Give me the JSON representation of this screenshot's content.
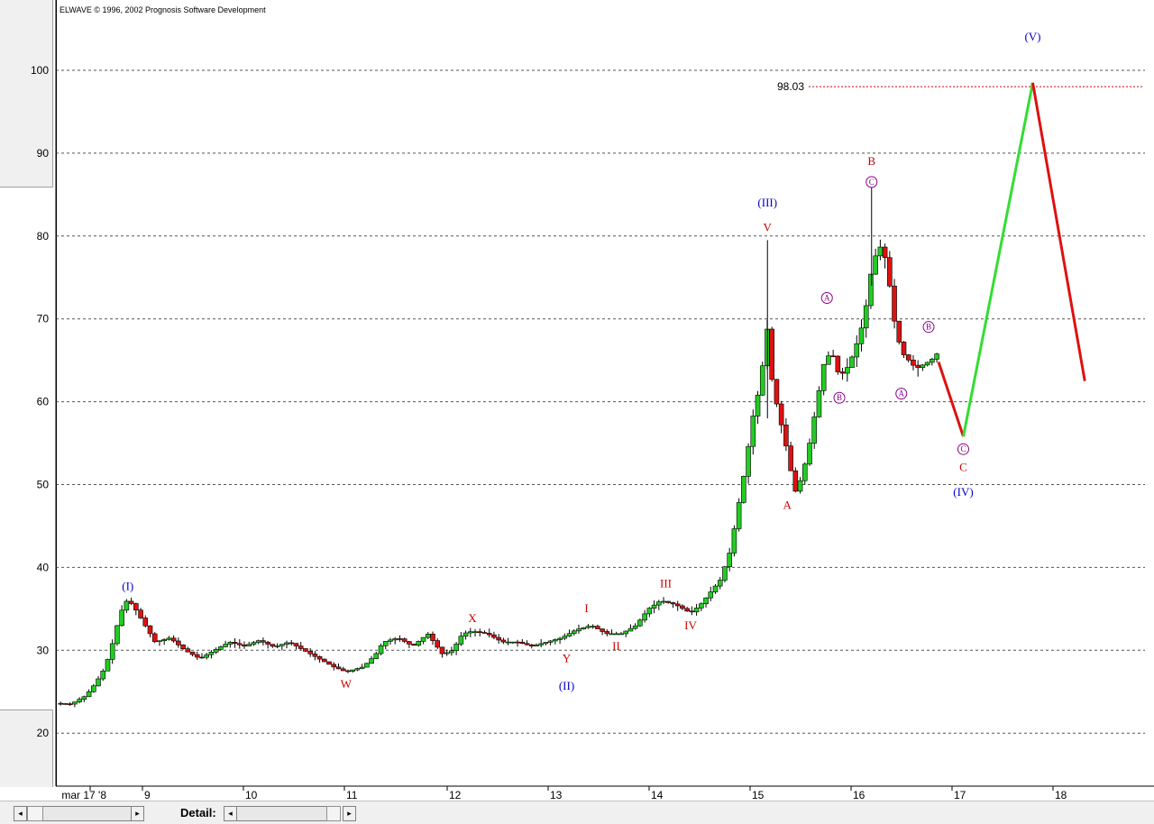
{
  "app": {
    "copyright": "ELWAVE © 1996, 2002 Prognosis Software Development"
  },
  "colors": {
    "up_candle": "#22cc22",
    "down_candle": "#dd1111",
    "wave_red": "#cc0000",
    "wave_blue": "#0000cc",
    "wave_purple": "#880088",
    "projection_up": "#33dd33",
    "projection_down": "#dd1111",
    "target_line": "#dd0000"
  },
  "chart_data": {
    "type": "candlestick",
    "title": "",
    "ylim": [
      15,
      108
    ],
    "y_ticks": [
      20,
      30,
      40,
      50,
      60,
      70,
      80,
      90,
      100
    ],
    "x_tick_labels": [
      "mar 17 '8",
      "9",
      "10",
      "11",
      "12",
      "13",
      "14",
      "15",
      "16",
      "17",
      "18"
    ],
    "grid": "horizontal dashed",
    "target": {
      "label": "98.03",
      "value": 98.03
    },
    "price_path": [
      [
        0,
        23.6
      ],
      [
        0.3,
        23.5
      ],
      [
        0.6,
        24.5
      ],
      [
        0.8,
        26
      ],
      [
        1.0,
        28
      ],
      [
        1.15,
        31
      ],
      [
        1.3,
        34.5
      ],
      [
        1.45,
        36.2
      ],
      [
        1.6,
        35
      ],
      [
        1.8,
        33
      ],
      [
        2.0,
        31
      ],
      [
        2.3,
        31.5
      ],
      [
        2.6,
        30
      ],
      [
        2.9,
        29
      ],
      [
        3.2,
        30
      ],
      [
        3.5,
        31
      ],
      [
        3.8,
        30.5
      ],
      [
        4.1,
        31.2
      ],
      [
        4.4,
        30.4
      ],
      [
        4.7,
        31
      ],
      [
        5.0,
        30
      ],
      [
        5.3,
        29
      ],
      [
        5.6,
        28
      ],
      [
        5.85,
        27.4
      ],
      [
        6.2,
        28
      ],
      [
        6.45,
        29.5
      ],
      [
        6.6,
        31
      ],
      [
        6.9,
        31.5
      ],
      [
        7.2,
        30.5
      ],
      [
        7.5,
        32
      ],
      [
        7.8,
        29.5
      ],
      [
        8.0,
        30
      ],
      [
        8.2,
        32
      ],
      [
        8.4,
        32.3
      ],
      [
        8.7,
        32
      ],
      [
        9.0,
        31
      ],
      [
        9.3,
        31
      ],
      [
        9.6,
        30.5
      ],
      [
        9.9,
        31
      ],
      [
        10.2,
        31.5
      ],
      [
        10.5,
        32.5
      ],
      [
        10.8,
        33
      ],
      [
        11.1,
        32
      ],
      [
        11.4,
        32
      ],
      [
        11.7,
        33
      ],
      [
        11.95,
        35
      ],
      [
        12.2,
        36
      ],
      [
        12.5,
        35.5
      ],
      [
        12.8,
        34.5
      ],
      [
        13.0,
        35.5
      ],
      [
        13.2,
        37
      ],
      [
        13.4,
        38.5
      ],
      [
        13.6,
        42
      ],
      [
        13.75,
        47
      ],
      [
        13.9,
        52
      ],
      [
        14.05,
        58
      ],
      [
        14.2,
        62
      ],
      [
        14.35,
        69
      ],
      [
        14.45,
        62
      ],
      [
        14.6,
        58
      ],
      [
        14.75,
        54
      ],
      [
        14.9,
        49
      ],
      [
        15.05,
        51
      ],
      [
        15.2,
        55
      ],
      [
        15.35,
        60
      ],
      [
        15.5,
        65
      ],
      [
        15.65,
        66
      ],
      [
        15.8,
        63
      ],
      [
        15.95,
        64
      ],
      [
        16.1,
        66
      ],
      [
        16.3,
        70
      ],
      [
        16.45,
        76
      ],
      [
        16.6,
        79
      ],
      [
        16.75,
        77
      ],
      [
        16.9,
        70
      ],
      [
        17.05,
        66
      ],
      [
        17.2,
        65
      ],
      [
        17.35,
        64
      ],
      [
        17.5,
        64.5
      ],
      [
        17.65,
        65
      ],
      [
        17.8,
        66
      ]
    ],
    "projection": {
      "down1": [
        [
          17.8,
          64.8
        ],
        [
          18.3,
          55.8
        ]
      ],
      "up": [
        [
          18.3,
          55.8
        ],
        [
          19.7,
          98.5
        ]
      ],
      "down2": [
        [
          19.7,
          98.5
        ],
        [
          20.75,
          62.5
        ]
      ]
    },
    "wave_labels": [
      {
        "text": "(I)",
        "x": 1.45,
        "y": 36.2,
        "above": true,
        "color": "blue"
      },
      {
        "text": "W",
        "x": 5.85,
        "y": 27.4,
        "above": false,
        "color": "red"
      },
      {
        "text": "X",
        "x": 8.4,
        "y": 32.3,
        "above": true,
        "color": "red"
      },
      {
        "text": "Y",
        "x": 10.3,
        "y": 30.5,
        "above": false,
        "color": "red"
      },
      {
        "text": "(II)",
        "x": 10.3,
        "y": 27.2,
        "above": false,
        "color": "blue"
      },
      {
        "text": "I",
        "x": 10.7,
        "y": 33.5,
        "above": true,
        "color": "red"
      },
      {
        "text": "II",
        "x": 11.3,
        "y": 32.0,
        "above": false,
        "color": "red"
      },
      {
        "text": "III",
        "x": 12.3,
        "y": 36.5,
        "above": true,
        "color": "red"
      },
      {
        "text": "IV",
        "x": 12.8,
        "y": 34.5,
        "above": false,
        "color": "red"
      },
      {
        "text": "V",
        "x": 14.35,
        "y": 79.5,
        "above": true,
        "color": "red"
      },
      {
        "text": "(III)",
        "x": 14.35,
        "y": 82.5,
        "above": true,
        "color": "blue"
      },
      {
        "text": "A",
        "x": 14.75,
        "y": 49.0,
        "above": false,
        "color": "red"
      },
      {
        "text": "(A)",
        "x": 15.55,
        "y": 71.0,
        "above": true,
        "color": "purple"
      },
      {
        "text": "(B)",
        "x": 15.8,
        "y": 62.0,
        "above": false,
        "color": "purple"
      },
      {
        "text": "(C)",
        "x": 16.45,
        "y": 85.0,
        "above": true,
        "color": "purple"
      },
      {
        "text": "B",
        "x": 16.45,
        "y": 87.5,
        "above": true,
        "color": "red"
      },
      {
        "text": "(A)",
        "x": 17.05,
        "y": 62.5,
        "above": false,
        "color": "purple"
      },
      {
        "text": "(B)",
        "x": 17.6,
        "y": 67.5,
        "above": true,
        "color": "purple"
      },
      {
        "text": "(C)",
        "x": 18.3,
        "y": 55.8,
        "above": false,
        "color": "purple"
      },
      {
        "text": "C",
        "x": 18.3,
        "y": 53.6,
        "above": false,
        "color": "red"
      },
      {
        "text": "(IV)",
        "x": 18.3,
        "y": 50.6,
        "above": false,
        "color": "blue"
      },
      {
        "text": "(V)",
        "x": 19.7,
        "y": 102.5,
        "above": true,
        "color": "blue"
      }
    ]
  },
  "bottombar": {
    "detail_label": "Detail:",
    "btn_left": "◂",
    "btn_right": "▸"
  }
}
